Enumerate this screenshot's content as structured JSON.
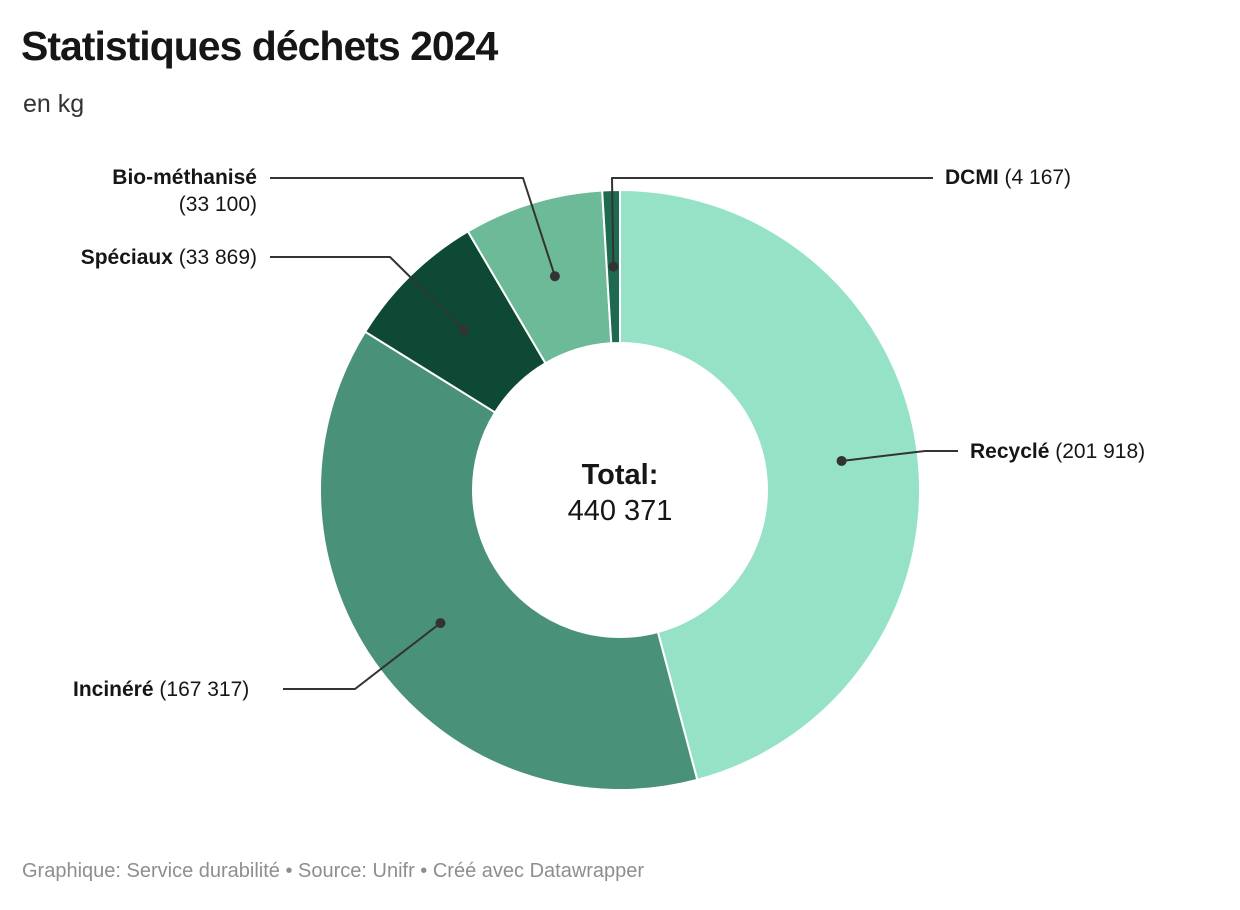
{
  "header": {
    "title": "Statistiques déchets 2024",
    "subtitle": "en kg"
  },
  "center": {
    "label": "Total:",
    "value": "440 371"
  },
  "footer": {
    "text": "Graphique: Service durabilité • Source: Unifr • Créé avec Datawrapper"
  },
  "chart_data": {
    "type": "pie",
    "subtype": "donut",
    "title": "Statistiques déchets 2024",
    "unit": "en kg",
    "total": 440371,
    "total_display": "440 371",
    "center_label": "Total:",
    "start_angle_deg": 0,
    "direction": "clockwise",
    "legend_position": "callout-labels",
    "segments": [
      {
        "label": "Recyclé",
        "value": 201918,
        "value_display": "201 918",
        "value_paren": "(201 918)",
        "color": "#95E2C6"
      },
      {
        "label": "Incinéré",
        "value": 167317,
        "value_display": "167 317",
        "value_paren": "(167 317)",
        "color": "#4A9179"
      },
      {
        "label": "Spéciaux",
        "value": 33869,
        "value_display": "33 869",
        "value_paren": "(33 869)",
        "color": "#0E4935"
      },
      {
        "label": "Bio-méthanisé",
        "value": 33100,
        "value_display": "33 100",
        "value_paren": "(33 100)",
        "color": "#6DBA98"
      },
      {
        "label": "DCMI",
        "value": 4167,
        "value_display": "4 167",
        "value_paren": "(4 167)",
        "color": "#1D6A50"
      }
    ],
    "layout": {
      "center": [
        620,
        490
      ],
      "outer_radius": 300,
      "inner_radius": 147,
      "slice_gap_color": "#ffffff",
      "connector_color": "#333333",
      "callouts": [
        {
          "segment": 0,
          "points": [
            [
              958,
              451
            ],
            [
              925,
              451
            ]
          ]
        },
        {
          "segment": 1,
          "points": [
            [
              283,
              689
            ],
            [
              355,
              689
            ]
          ]
        },
        {
          "segment": 2,
          "points": [
            [
              270,
              257
            ],
            [
              390,
              257
            ]
          ]
        },
        {
          "segment": 3,
          "points": [
            [
              270,
              178
            ],
            [
              523,
              178
            ]
          ]
        },
        {
          "segment": 4,
          "points": [
            [
              933,
              178
            ],
            [
              612,
              178
            ]
          ]
        }
      ]
    }
  }
}
